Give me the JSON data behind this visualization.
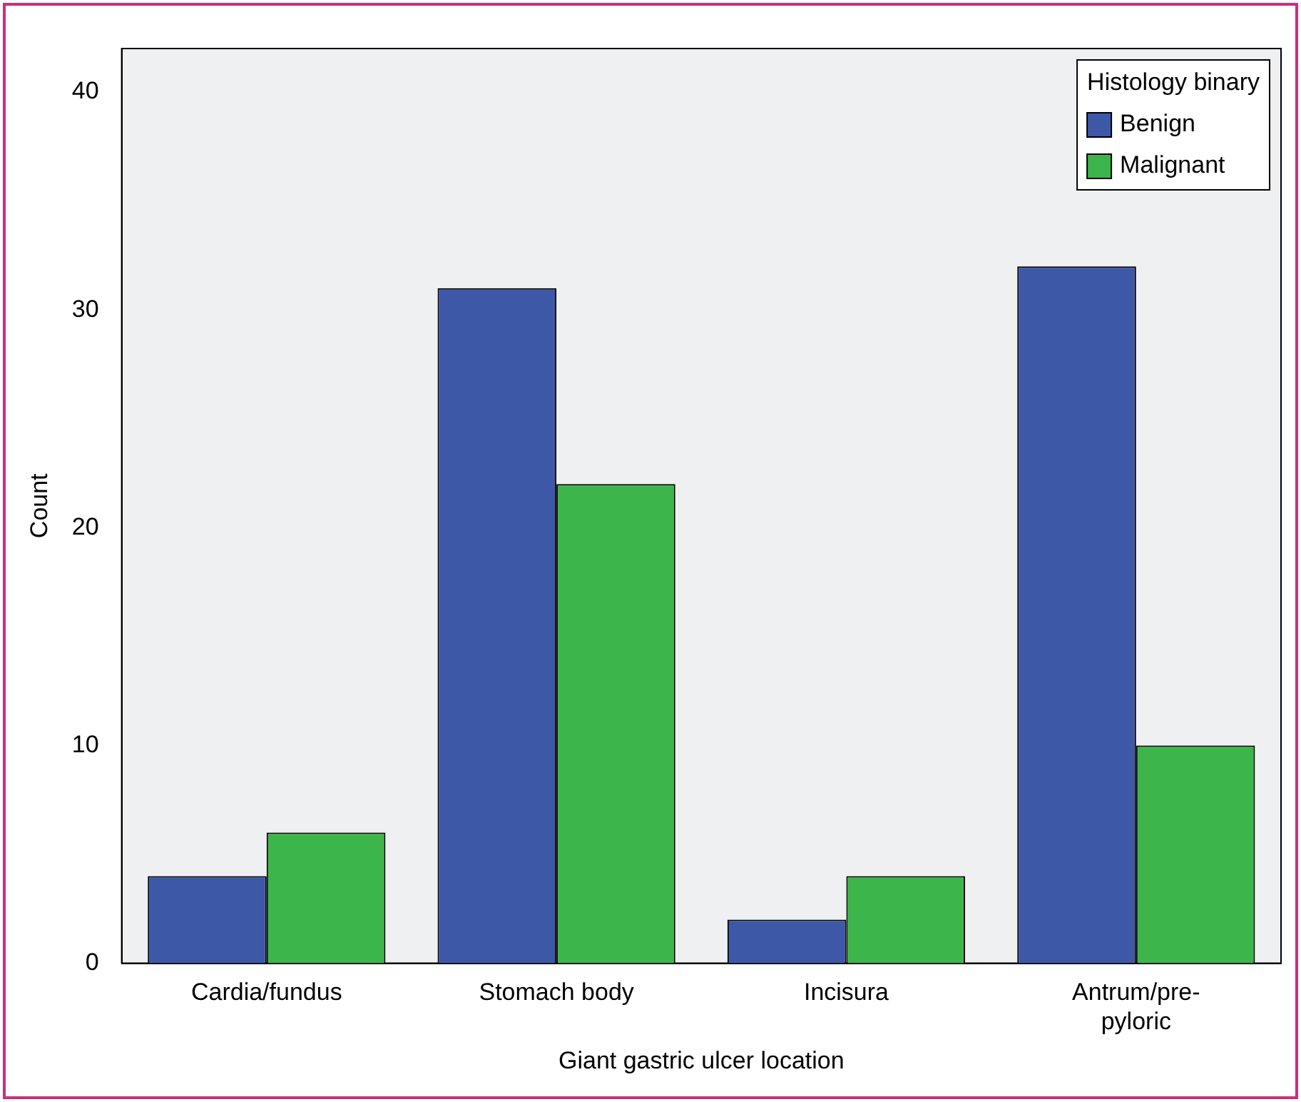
{
  "chart_data": {
    "type": "bar",
    "xlabel": "Giant gastric ulcer location",
    "ylabel": "Count",
    "legend_title": "Histology binary",
    "categories": [
      "Cardia/fundus",
      "Stomach body",
      "Incisura",
      "Antrum/pre-pyloric"
    ],
    "series": [
      {
        "name": "Benign",
        "color": "#3e58a8",
        "values": [
          4,
          31,
          2,
          32
        ]
      },
      {
        "name": "Malignant",
        "color": "#3cb54a",
        "values": [
          6,
          22,
          4,
          10
        ]
      }
    ],
    "ylim": [
      0,
      42
    ],
    "yticks": [
      0,
      10,
      20,
      30,
      40
    ],
    "grid": false,
    "legend": "top right"
  }
}
